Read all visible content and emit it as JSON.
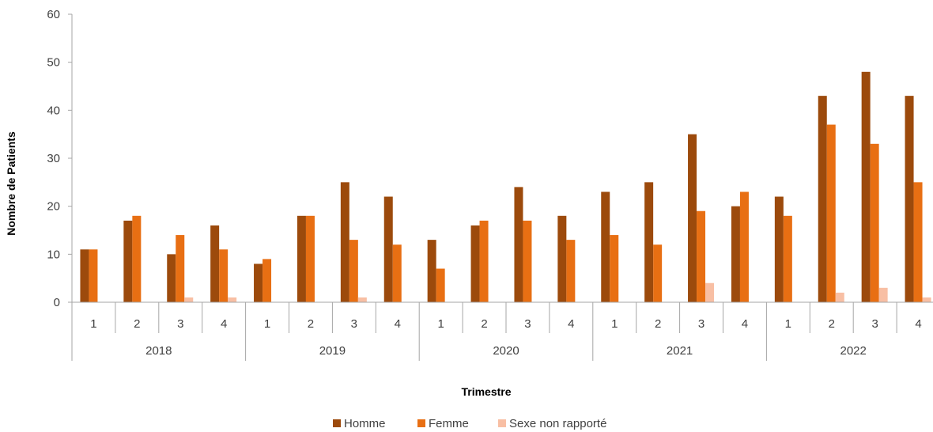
{
  "chart_data": {
    "type": "bar",
    "ylabel": "Nombre de Patients",
    "xlabel": "Trimestre",
    "ylim": [
      0,
      60
    ],
    "yticks": [
      0,
      10,
      20,
      30,
      40,
      50,
      60
    ],
    "years": [
      "2018",
      "2019",
      "2020",
      "2021",
      "2022"
    ],
    "quarters": [
      "1",
      "2",
      "3",
      "4"
    ],
    "categories": [
      "2018 T1",
      "2018 T2",
      "2018 T3",
      "2018 T4",
      "2019 T1",
      "2019 T2",
      "2019 T3",
      "2019 T4",
      "2020 T1",
      "2020 T2",
      "2020 T3",
      "2020 T4",
      "2021 T1",
      "2021 T2",
      "2021 T3",
      "2021 T4",
      "2022 T1",
      "2022 T2",
      "2022 T3",
      "2022 T4"
    ],
    "series": [
      {
        "name": "Homme",
        "color": "#9C4A0C",
        "values": [
          11,
          17,
          10,
          16,
          8,
          18,
          25,
          22,
          13,
          16,
          24,
          18,
          23,
          25,
          35,
          20,
          22,
          43,
          48,
          43
        ]
      },
      {
        "name": "Femme",
        "color": "#E86F13",
        "values": [
          11,
          18,
          14,
          11,
          9,
          18,
          13,
          12,
          7,
          17,
          17,
          13,
          14,
          12,
          19,
          23,
          18,
          37,
          33,
          25
        ]
      },
      {
        "name": "Sexe non rapporté",
        "color": "#F8BFA4",
        "values": [
          0,
          0,
          1,
          1,
          0,
          0,
          1,
          0,
          0,
          0,
          0,
          0,
          0,
          0,
          4,
          0,
          0,
          2,
          3,
          1
        ]
      }
    ],
    "legend_position": "bottom",
    "grid": false
  }
}
